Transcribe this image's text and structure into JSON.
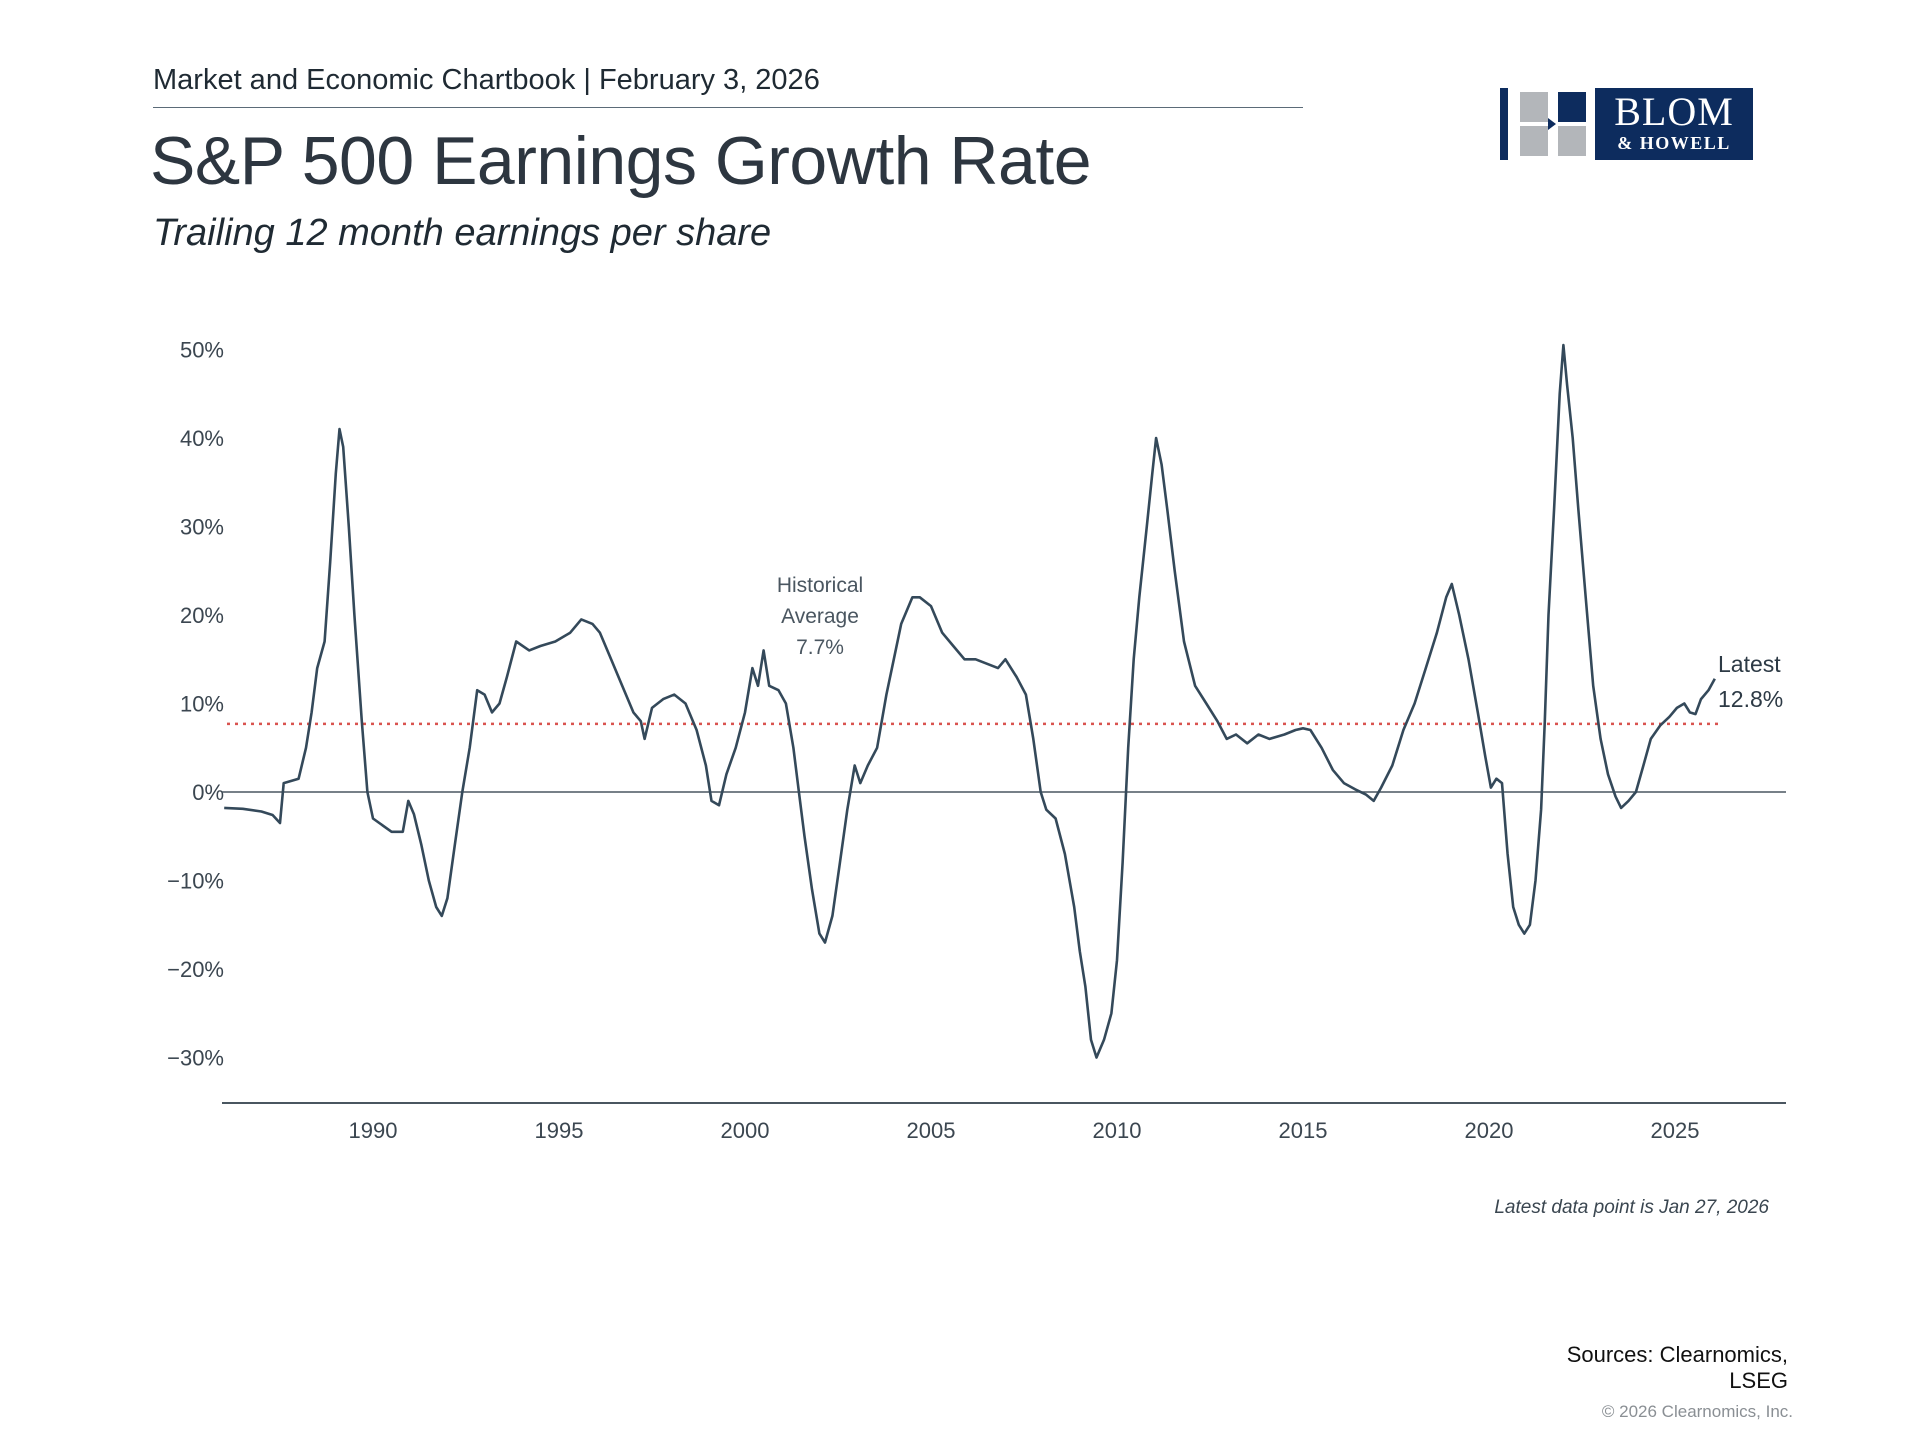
{
  "header": {
    "chartbook": "Market and Economic Chartbook | February 3, 2026",
    "title": "S&P 500 Earnings Growth Rate",
    "subtitle": "Trailing 12 month earnings per share"
  },
  "logo": {
    "line1": "BLOM",
    "line2": "& HOWELL",
    "brand_color": "#0d2c5e",
    "mark_gray": "#b3b6ba"
  },
  "footer": {
    "latest_note": "Latest data point is Jan 27, 2026",
    "sources_line1": "Sources: Clearnomics,",
    "sources_line2": "LSEG",
    "copyright": "© 2026 Clearnomics, Inc."
  },
  "chart_data": {
    "type": "line",
    "title": "S&P 500 Earnings Growth Rate",
    "subtitle": "Trailing 12 month earnings per share",
    "xlabel": "",
    "ylabel": "",
    "xlim": [
      1985.95,
      2026.5
    ],
    "ylim": [
      -35,
      52
    ],
    "x_ticks": [
      1990,
      1995,
      2000,
      2005,
      2010,
      2015,
      2020,
      2025
    ],
    "y_ticks": [
      {
        "value": 50,
        "label": "50%"
      },
      {
        "value": 40,
        "label": "40%"
      },
      {
        "value": 30,
        "label": "30%"
      },
      {
        "value": 20,
        "label": "20%"
      },
      {
        "value": 10,
        "label": "10%"
      },
      {
        "value": 0,
        "label": "0%"
      },
      {
        "value": -10,
        "label": "−10%"
      },
      {
        "value": -20,
        "label": "−20%"
      },
      {
        "value": -30,
        "label": "−30%"
      }
    ],
    "grid": false,
    "line_color": "#34495a",
    "average_line": {
      "value": 7.7,
      "color": "#d9534f",
      "style": "dotted"
    },
    "annotations": [
      {
        "lines": [
          "Historical",
          "Average",
          "7.7%"
        ],
        "x": 2002,
        "y": 19
      },
      {
        "lines": [
          "Latest",
          "12.8%"
        ],
        "x": 2026.1,
        "y": 12.8
      }
    ],
    "series": [
      {
        "name": "S&P 500 TTM EPS growth",
        "points": [
          [
            1986.0,
            -1.8
          ],
          [
            1986.5,
            -1.9
          ],
          [
            1987.0,
            -2.2
          ],
          [
            1987.3,
            -2.6
          ],
          [
            1987.5,
            -3.5
          ],
          [
            1987.6,
            1.0
          ],
          [
            1988.0,
            1.5
          ],
          [
            1988.2,
            5
          ],
          [
            1988.35,
            9
          ],
          [
            1988.5,
            14
          ],
          [
            1988.7,
            17
          ],
          [
            1988.85,
            26
          ],
          [
            1989.0,
            36
          ],
          [
            1989.1,
            41
          ],
          [
            1989.2,
            39
          ],
          [
            1989.35,
            30
          ],
          [
            1989.5,
            20
          ],
          [
            1989.7,
            8
          ],
          [
            1989.85,
            0
          ],
          [
            1990.0,
            -3
          ],
          [
            1990.5,
            -4.5
          ],
          [
            1990.8,
            -4.5
          ],
          [
            1990.95,
            -1
          ],
          [
            1991.1,
            -2.5
          ],
          [
            1991.3,
            -6
          ],
          [
            1991.5,
            -10
          ],
          [
            1991.7,
            -13
          ],
          [
            1991.85,
            -14
          ],
          [
            1992.0,
            -12
          ],
          [
            1992.2,
            -6
          ],
          [
            1992.4,
            0
          ],
          [
            1992.6,
            5
          ],
          [
            1992.8,
            11.5
          ],
          [
            1993.0,
            11
          ],
          [
            1993.2,
            9
          ],
          [
            1993.4,
            10
          ],
          [
            1993.6,
            13
          ],
          [
            1993.85,
            17
          ],
          [
            1994.2,
            16
          ],
          [
            1994.5,
            16.5
          ],
          [
            1994.9,
            17
          ],
          [
            1995.3,
            18
          ],
          [
            1995.6,
            19.5
          ],
          [
            1995.9,
            19
          ],
          [
            1996.1,
            18
          ],
          [
            1996.4,
            15
          ],
          [
            1996.7,
            12
          ],
          [
            1997.0,
            9
          ],
          [
            1997.2,
            8
          ],
          [
            1997.3,
            6
          ],
          [
            1997.5,
            9.5
          ],
          [
            1997.8,
            10.5
          ],
          [
            1998.1,
            11
          ],
          [
            1998.4,
            10
          ],
          [
            1998.7,
            7
          ],
          [
            1998.95,
            3
          ],
          [
            1999.1,
            -1
          ],
          [
            1999.3,
            -1.5
          ],
          [
            1999.5,
            2
          ],
          [
            1999.75,
            5
          ],
          [
            2000.0,
            9
          ],
          [
            2000.2,
            14
          ],
          [
            2000.35,
            12
          ],
          [
            2000.5,
            16
          ],
          [
            2000.65,
            12
          ],
          [
            2000.9,
            11.5
          ],
          [
            2001.1,
            10
          ],
          [
            2001.3,
            5
          ],
          [
            2001.45,
            0
          ],
          [
            2001.6,
            -5
          ],
          [
            2001.8,
            -11
          ],
          [
            2002.0,
            -16
          ],
          [
            2002.15,
            -17
          ],
          [
            2002.35,
            -14
          ],
          [
            2002.55,
            -8
          ],
          [
            2002.75,
            -2
          ],
          [
            2002.95,
            3
          ],
          [
            2003.1,
            1
          ],
          [
            2003.3,
            3
          ],
          [
            2003.55,
            5
          ],
          [
            2003.8,
            11
          ],
          [
            2004.0,
            15
          ],
          [
            2004.2,
            19
          ],
          [
            2004.5,
            22
          ],
          [
            2004.7,
            22
          ],
          [
            2005.0,
            21
          ],
          [
            2005.3,
            18
          ],
          [
            2005.6,
            16.5
          ],
          [
            2005.9,
            15
          ],
          [
            2006.2,
            15
          ],
          [
            2006.5,
            14.5
          ],
          [
            2006.8,
            14
          ],
          [
            2007.0,
            15
          ],
          [
            2007.3,
            13
          ],
          [
            2007.55,
            11
          ],
          [
            2007.75,
            6
          ],
          [
            2007.95,
            0
          ],
          [
            2008.1,
            -2
          ],
          [
            2008.35,
            -3
          ],
          [
            2008.6,
            -7
          ],
          [
            2008.85,
            -13
          ],
          [
            2009.0,
            -18
          ],
          [
            2009.15,
            -22
          ],
          [
            2009.3,
            -28
          ],
          [
            2009.45,
            -30
          ],
          [
            2009.65,
            -28
          ],
          [
            2009.85,
            -25
          ],
          [
            2010.0,
            -19
          ],
          [
            2010.15,
            -8
          ],
          [
            2010.3,
            5
          ],
          [
            2010.45,
            15
          ],
          [
            2010.6,
            22
          ],
          [
            2010.8,
            30
          ],
          [
            2010.95,
            36
          ],
          [
            2011.05,
            40
          ],
          [
            2011.2,
            37
          ],
          [
            2011.35,
            32
          ],
          [
            2011.55,
            25
          ],
          [
            2011.8,
            17
          ],
          [
            2012.1,
            12
          ],
          [
            2012.4,
            10
          ],
          [
            2012.7,
            8
          ],
          [
            2012.95,
            6
          ],
          [
            2013.2,
            6.5
          ],
          [
            2013.5,
            5.5
          ],
          [
            2013.8,
            6.5
          ],
          [
            2014.1,
            6
          ],
          [
            2014.5,
            6.5
          ],
          [
            2014.8,
            7
          ],
          [
            2015.0,
            7.2
          ],
          [
            2015.2,
            7
          ],
          [
            2015.5,
            5
          ],
          [
            2015.8,
            2.5
          ],
          [
            2016.1,
            1
          ],
          [
            2016.4,
            0.3
          ],
          [
            2016.7,
            -0.3
          ],
          [
            2016.9,
            -1
          ],
          [
            2017.1,
            0.5
          ],
          [
            2017.4,
            3
          ],
          [
            2017.7,
            7
          ],
          [
            2018.0,
            10
          ],
          [
            2018.3,
            14
          ],
          [
            2018.6,
            18
          ],
          [
            2018.85,
            22
          ],
          [
            2019.0,
            23.5
          ],
          [
            2019.2,
            20
          ],
          [
            2019.45,
            15
          ],
          [
            2019.7,
            9
          ],
          [
            2019.9,
            4
          ],
          [
            2020.05,
            0.5
          ],
          [
            2020.2,
            1.5
          ],
          [
            2020.35,
            1
          ],
          [
            2020.5,
            -7
          ],
          [
            2020.65,
            -13
          ],
          [
            2020.8,
            -15
          ],
          [
            2020.95,
            -16
          ],
          [
            2021.1,
            -15
          ],
          [
            2021.25,
            -10
          ],
          [
            2021.4,
            -2
          ],
          [
            2021.5,
            8
          ],
          [
            2021.6,
            20
          ],
          [
            2021.75,
            32
          ],
          [
            2021.9,
            45
          ],
          [
            2022.0,
            50.5
          ],
          [
            2022.1,
            46
          ],
          [
            2022.25,
            40
          ],
          [
            2022.4,
            32
          ],
          [
            2022.6,
            22
          ],
          [
            2022.8,
            12
          ],
          [
            2023.0,
            6
          ],
          [
            2023.2,
            2
          ],
          [
            2023.4,
            -0.5
          ],
          [
            2023.55,
            -1.8
          ],
          [
            2023.75,
            -1
          ],
          [
            2023.95,
            0
          ],
          [
            2024.15,
            3
          ],
          [
            2024.35,
            6
          ],
          [
            2024.6,
            7.5
          ],
          [
            2024.85,
            8.5
          ],
          [
            2025.05,
            9.5
          ],
          [
            2025.25,
            10
          ],
          [
            2025.4,
            9
          ],
          [
            2025.55,
            8.8
          ],
          [
            2025.7,
            10.5
          ],
          [
            2025.9,
            11.5
          ],
          [
            2026.07,
            12.8
          ]
        ]
      }
    ]
  }
}
